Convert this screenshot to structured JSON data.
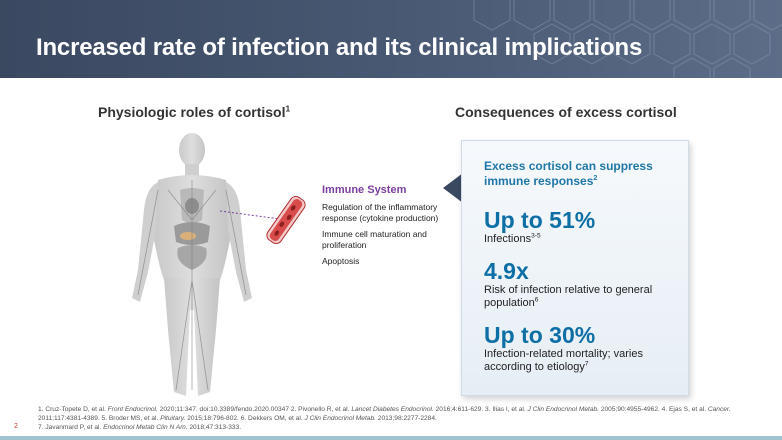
{
  "header": {
    "title": "Increased rate of infection and its clinical implications"
  },
  "left_section": {
    "heading": "Physiologic roles of cortisol",
    "heading_ref": "1"
  },
  "right_section": {
    "heading": "Consequences of excess cortisol"
  },
  "immune": {
    "title": "Immune System",
    "items": [
      "Regulation of the inflammatory response (cytokine production)",
      "Immune cell maturation and proliferation",
      "Apoptosis"
    ]
  },
  "callout": {
    "heading": "Excess cortisol can suppress immune responses",
    "heading_ref": "2",
    "stats": [
      {
        "value": "Up to 51%",
        "label": "Infections",
        "ref": "3-5"
      },
      {
        "value": "4.9x",
        "label": "Risk of infection relative to general population",
        "ref": "6"
      },
      {
        "value": "Up to 30%",
        "label": "Infection-related mortality; varies according to etiology",
        "ref": "7"
      }
    ]
  },
  "references": {
    "r1a": "1. Cruz-Topete D, et al. ",
    "r1j": "Front Endocrinol.",
    "r1b": " 2020;11:347. doi:10.3389/fendo.2020.00347 2. Pivonello R, et al. ",
    "r2j": "Lancet Diabetes Endocrinol.",
    "r2b": " 2016;4:611-629. 3. Ilias I, et al. ",
    "r3j": "J Clin Endocrinol Metab.",
    "r3b": " 2005;90:4955-4962. 4. Ejas S, et al. ",
    "r4j": "Cancer.",
    "r4b": "  2011;117:4381-4389. 5. Broder MS, et al. ",
    "r5j": "Pituitary.",
    "r5b": " 2015;18:796-802. 6. Dekkers OM, et al. ",
    "r6j": "J Clin Endocrinol Metab.",
    "r6b": " 2013;98:2277-2284.",
    "r7a": "7. Javanmard P, et al. ",
    "r7j": "Endocrinol Metab Clin N Am.",
    "r7b": " 2018;47:313-333."
  },
  "page_number": "2",
  "colors": {
    "header_bg": "#3a4860",
    "immune_title": "#7b3fa0",
    "stat_blue": "#0d6fa6",
    "callout_head": "#1f77a8",
    "vessel_red": "#c0392b"
  }
}
